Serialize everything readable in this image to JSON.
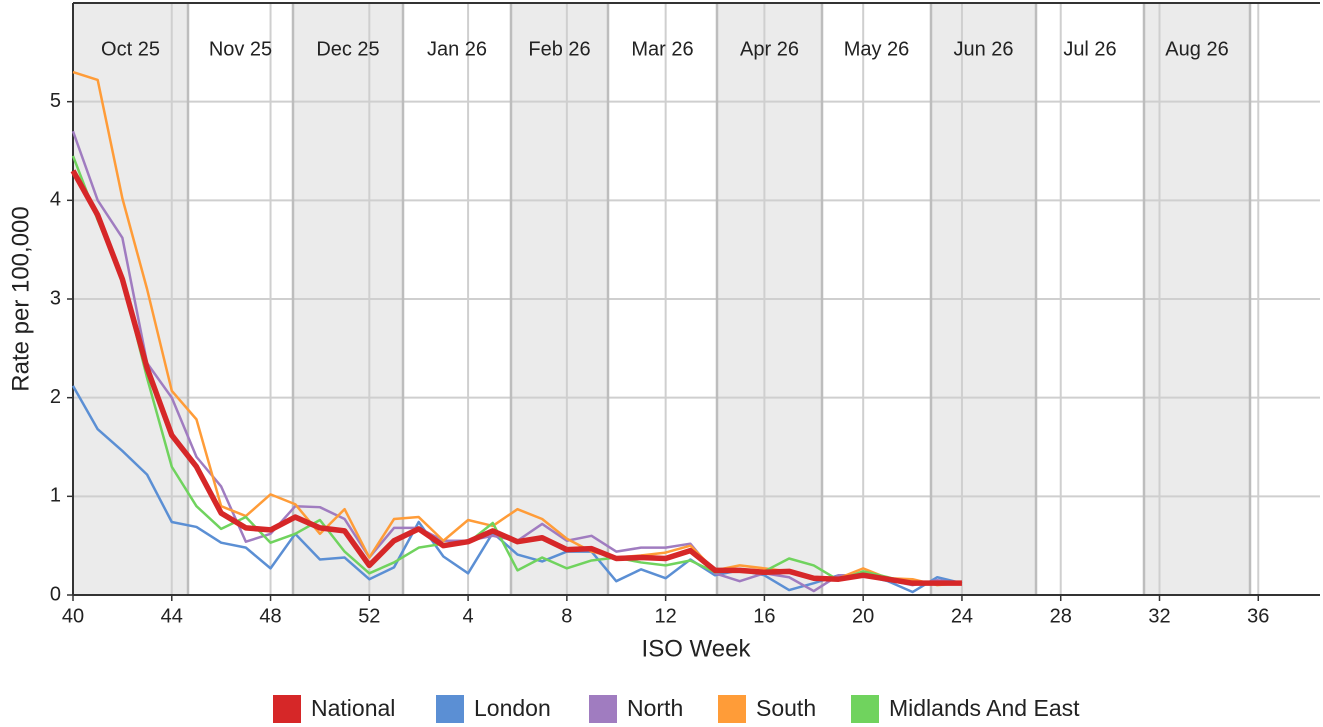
{
  "chart_data": {
    "type": "line",
    "x_label": "ISO Week",
    "y_label": "Rate per 100,000",
    "month_bands": [
      "Oct 25",
      "Nov 25",
      "Dec 25",
      "Jan 26",
      "Feb 26",
      "Mar 26",
      "Apr 26",
      "May 26",
      "Jun 26",
      "Jul 26",
      "Aug 26"
    ],
    "categories": [
      "40",
      null,
      null,
      null,
      "44",
      null,
      null,
      null,
      "48",
      null,
      null,
      null,
      "52",
      null,
      null,
      null,
      "4",
      null,
      null,
      null,
      "8",
      null,
      null,
      null,
      "12",
      null,
      null,
      null,
      "16",
      null,
      null,
      null,
      "20",
      null,
      null,
      null,
      "24",
      null,
      null,
      null,
      "28",
      null,
      null,
      null,
      "32",
      null,
      null,
      null,
      "36"
    ],
    "series": [
      {
        "name": "National",
        "color": "#d62728",
        "values": [
          4.3,
          3.85,
          3.2,
          2.3,
          1.62,
          1.3,
          0.83,
          0.68,
          0.66,
          0.79,
          0.68,
          0.65,
          0.3,
          0.55,
          0.67,
          0.5,
          0.54,
          0.65,
          0.54,
          0.58,
          0.46,
          0.47,
          0.37,
          0.38,
          0.37,
          0.45,
          0.25,
          0.25,
          0.23,
          0.24,
          0.17,
          0.16,
          0.2,
          0.16,
          0.12,
          0.12,
          0.12,
          null,
          null,
          null,
          null,
          null,
          null,
          null,
          null,
          null,
          null,
          null,
          null
        ]
      },
      {
        "name": "London",
        "color": "#5b8fd4",
        "values": [
          2.12,
          1.68,
          1.46,
          1.22,
          0.74,
          0.69,
          0.53,
          0.48,
          0.27,
          0.62,
          0.36,
          0.38,
          0.16,
          0.28,
          0.74,
          0.39,
          0.22,
          0.63,
          0.41,
          0.34,
          0.44,
          0.44,
          0.14,
          0.26,
          0.17,
          0.36,
          0.2,
          0.25,
          0.2,
          0.05,
          0.12,
          0.2,
          0.2,
          0.14,
          0.03,
          0.18,
          0.12,
          null,
          null,
          null,
          null,
          null,
          null,
          null,
          null,
          null,
          null,
          null,
          null
        ]
      },
      {
        "name": "North",
        "color": "#a07cc0",
        "values": [
          4.7,
          4.0,
          3.62,
          2.35,
          2.0,
          1.4,
          1.1,
          0.54,
          0.62,
          0.9,
          0.89,
          0.77,
          0.38,
          0.68,
          0.68,
          0.55,
          0.55,
          0.6,
          0.55,
          0.72,
          0.55,
          0.6,
          0.44,
          0.48,
          0.48,
          0.52,
          0.22,
          0.14,
          0.22,
          0.18,
          0.04,
          0.2,
          0.2,
          0.15,
          0.1,
          0.15,
          0.12,
          null,
          null,
          null,
          null,
          null,
          null,
          null,
          null,
          null,
          null,
          null,
          null
        ]
      },
      {
        "name": "South",
        "color": "#ff9c38",
        "values": [
          5.3,
          5.22,
          4.02,
          3.1,
          2.07,
          1.78,
          0.9,
          0.8,
          1.02,
          0.92,
          0.62,
          0.87,
          0.38,
          0.77,
          0.79,
          0.55,
          0.76,
          0.7,
          0.87,
          0.77,
          0.57,
          0.44,
          0.38,
          0.4,
          0.43,
          0.5,
          0.25,
          0.3,
          0.27,
          0.24,
          0.17,
          0.17,
          0.27,
          0.17,
          0.16,
          0.1,
          0.12,
          null,
          null,
          null,
          null,
          null,
          null,
          null,
          null,
          null,
          null,
          null,
          null
        ]
      },
      {
        "name": "Midlands And East",
        "color": "#70d35e",
        "values": [
          4.45,
          3.8,
          3.2,
          2.2,
          1.3,
          0.9,
          0.67,
          0.79,
          0.53,
          0.62,
          0.76,
          0.44,
          0.22,
          0.33,
          0.48,
          0.52,
          0.53,
          0.73,
          0.25,
          0.38,
          0.27,
          0.35,
          0.38,
          0.33,
          0.3,
          0.35,
          0.23,
          0.25,
          0.24,
          0.37,
          0.3,
          0.15,
          0.24,
          0.18,
          0.12,
          0.12,
          0.12,
          null,
          null,
          null,
          null,
          null,
          null,
          null,
          null,
          null,
          null,
          null,
          null
        ]
      }
    ],
    "ylim": [
      0,
      6
    ],
    "yticks": [
      0,
      1,
      2,
      3,
      4,
      5
    ],
    "grid": true,
    "legend": "bottom"
  }
}
